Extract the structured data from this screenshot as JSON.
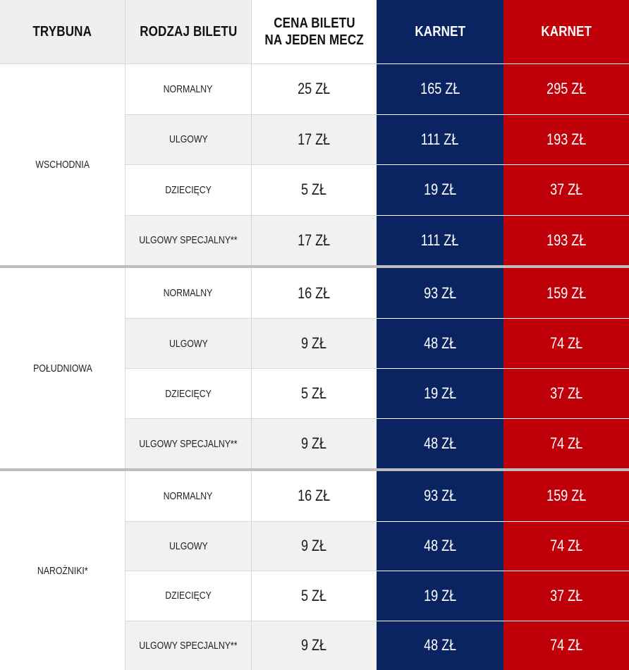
{
  "headers": {
    "stand": "TRYBUNA",
    "ticket_type": "RODZAJ BILETU",
    "single_price_line1": "CENA BILETU",
    "single_price_line2": "NA JEDEN MECZ",
    "karnet_blue": "KARNET",
    "karnet_red": "KARNET"
  },
  "colors": {
    "blue": "#0a2461",
    "red": "#bf0009",
    "gray": "#efefef"
  },
  "sections": [
    {
      "stand": "WSCHODNIA",
      "rows": [
        {
          "type": "NORMALNY",
          "price": "25 ZŁ",
          "karnet_blue": "165 ZŁ",
          "karnet_red": "295 ZŁ"
        },
        {
          "type": "ULGOWY",
          "price": "17 ZŁ",
          "karnet_blue": "111 ZŁ",
          "karnet_red": "193 ZŁ"
        },
        {
          "type": "DZIECIĘCY",
          "price": "5 ZŁ",
          "karnet_blue": "19 ZŁ",
          "karnet_red": "37 ZŁ"
        },
        {
          "type": "ULGOWY SPECJALNY**",
          "price": "17 ZŁ",
          "karnet_blue": "111 ZŁ",
          "karnet_red": "193 ZŁ"
        }
      ]
    },
    {
      "stand": "POŁUDNIOWA",
      "rows": [
        {
          "type": "NORMALNY",
          "price": "16 ZŁ",
          "karnet_blue": "93 ZŁ",
          "karnet_red": "159 ZŁ"
        },
        {
          "type": "ULGOWY",
          "price": "9 ZŁ",
          "karnet_blue": "48 ZŁ",
          "karnet_red": "74 ZŁ"
        },
        {
          "type": "DZIECIĘCY",
          "price": "5 ZŁ",
          "karnet_blue": "19 ZŁ",
          "karnet_red": "37 ZŁ"
        },
        {
          "type": "ULGOWY SPECJALNY**",
          "price": "9 ZŁ",
          "karnet_blue": "48 ZŁ",
          "karnet_red": "74 ZŁ"
        }
      ]
    },
    {
      "stand": "NAROŻNIKI*",
      "rows": [
        {
          "type": "NORMALNY",
          "price": "16 ZŁ",
          "karnet_blue": "93 ZŁ",
          "karnet_red": "159 ZŁ"
        },
        {
          "type": "ULGOWY",
          "price": "9 ZŁ",
          "karnet_blue": "48 ZŁ",
          "karnet_red": "74 ZŁ"
        },
        {
          "type": "DZIECIĘCY",
          "price": "5 ZŁ",
          "karnet_blue": "19 ZŁ",
          "karnet_red": "37 ZŁ"
        },
        {
          "type": "ULGOWY SPECJALNY**",
          "price": "9 ZŁ",
          "karnet_blue": "48 ZŁ",
          "karnet_red": "74 ZŁ"
        }
      ]
    }
  ]
}
